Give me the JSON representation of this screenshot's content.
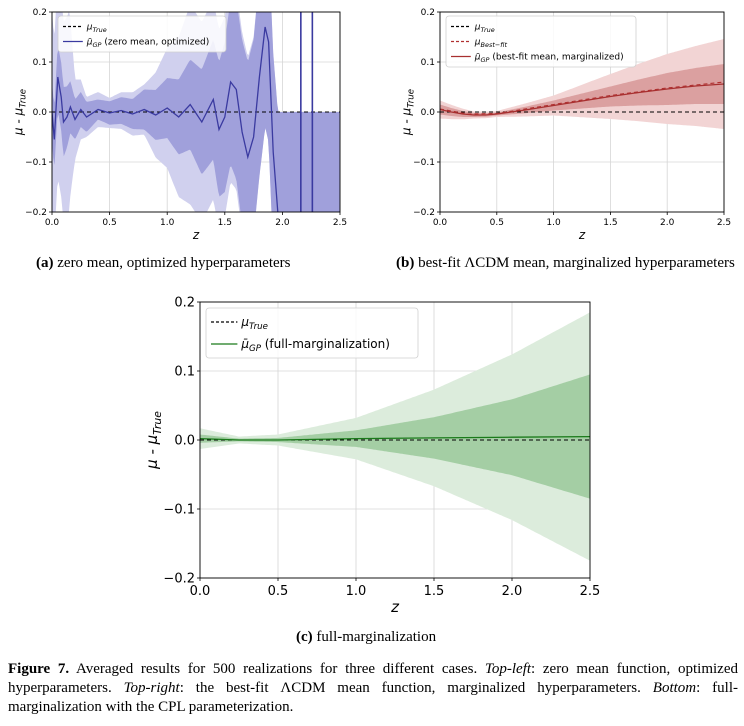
{
  "chart_data": [
    {
      "panel": "a",
      "type": "line",
      "xlabel": "z",
      "ylabel": "μ - μ_True",
      "xlim": [
        0,
        2.5
      ],
      "ylim": [
        -0.2,
        0.2
      ],
      "xticks": [
        "0.0",
        "0.5",
        "1.0",
        "1.5",
        "2.0",
        "2.5"
      ],
      "yticks": [
        "−0.2",
        "−0.1",
        "0.0",
        "0.1",
        "0.2"
      ],
      "grid": true,
      "legend_position": "upper-left",
      "legend": [
        {
          "label_main": "μ",
          "label_sub": "True",
          "label_rest": "",
          "style": "dashed",
          "color": "#000000"
        },
        {
          "label_main": "μ̄",
          "label_sub": "GP",
          "label_rest": " (zero mean, optimized)",
          "style": "solid",
          "color": "#3a3aa0"
        }
      ],
      "colors": {
        "line": "#3a3aa0",
        "band1": "#9a9ad8",
        "band2": "#d0d0ee"
      },
      "series_mean": [
        [
          0,
          0
        ],
        [
          0.02,
          -0.055
        ],
        [
          0.05,
          0.07
        ],
        [
          0.08,
          0.03
        ],
        [
          0.1,
          -0.02
        ],
        [
          0.13,
          -0.01
        ],
        [
          0.16,
          0.01
        ],
        [
          0.2,
          -0.015
        ],
        [
          0.25,
          0.005
        ],
        [
          0.3,
          -0.01
        ],
        [
          0.4,
          0.005
        ],
        [
          0.5,
          -0.002
        ],
        [
          0.6,
          0.003
        ],
        [
          0.7,
          -0.004
        ],
        [
          0.8,
          0.005
        ],
        [
          0.9,
          -0.006
        ],
        [
          1.0,
          0.008
        ],
        [
          1.1,
          -0.01
        ],
        [
          1.2,
          0.015
        ],
        [
          1.3,
          -0.02
        ],
        [
          1.4,
          0.025
        ],
        [
          1.45,
          -0.035
        ],
        [
          1.5,
          -0.01
        ],
        [
          1.55,
          0.06
        ],
        [
          1.6,
          0.045
        ],
        [
          1.65,
          -0.04
        ],
        [
          1.7,
          -0.09
        ],
        [
          1.75,
          -0.05
        ],
        [
          1.8,
          0.07
        ],
        [
          1.85,
          0.17
        ],
        [
          1.88,
          0.14
        ],
        [
          1.92,
          -0.08
        ],
        [
          1.96,
          -0.2
        ]
      ],
      "spikes_x": [
        2.16,
        2.26
      ],
      "band1_halfwidth": [
        [
          0,
          0.06
        ],
        [
          0.1,
          0.07
        ],
        [
          0.2,
          0.04
        ],
        [
          0.4,
          0.02
        ],
        [
          0.7,
          0.03
        ],
        [
          1.0,
          0.06
        ],
        [
          1.2,
          0.09
        ],
        [
          1.4,
          0.12
        ],
        [
          1.6,
          0.18
        ],
        [
          1.8,
          0.2
        ],
        [
          2.5,
          0.2
        ]
      ],
      "band2_halfwidth": [
        [
          0,
          0.2
        ],
        [
          0.15,
          0.2
        ],
        [
          0.2,
          0.08
        ],
        [
          0.3,
          0.04
        ],
        [
          0.5,
          0.03
        ],
        [
          0.8,
          0.05
        ],
        [
          1.0,
          0.12
        ],
        [
          1.2,
          0.2
        ],
        [
          2.5,
          0.2
        ]
      ]
    },
    {
      "panel": "b",
      "type": "line",
      "xlabel": "z",
      "ylabel": "μ - μ_True",
      "xlim": [
        0,
        2.5
      ],
      "ylim": [
        -0.2,
        0.2
      ],
      "xticks": [
        "0.0",
        "0.5",
        "1.0",
        "1.5",
        "2.0",
        "2.5"
      ],
      "yticks": [
        "−0.2",
        "−0.1",
        "0.0",
        "0.1",
        "0.2"
      ],
      "grid": true,
      "legend_position": "upper-left",
      "legend": [
        {
          "label_main": "μ",
          "label_sub": "True",
          "label_rest": "",
          "style": "dashed",
          "color": "#000000"
        },
        {
          "label_main": "μ",
          "label_sub": "Best−fit",
          "label_rest": "",
          "style": "dashed",
          "color": "#b03030"
        },
        {
          "label_main": "μ̄",
          "label_sub": "GP",
          "label_rest": " (best-fit mean, marginalized)",
          "style": "solid",
          "color": "#a83030"
        }
      ],
      "colors": {
        "line": "#a83030",
        "band1": "#d89a9a",
        "band2": "#f2d4d4"
      },
      "series_mean": [
        [
          0,
          0.005
        ],
        [
          0.1,
          0.0
        ],
        [
          0.2,
          -0.004
        ],
        [
          0.3,
          -0.006
        ],
        [
          0.4,
          -0.006
        ],
        [
          0.5,
          -0.004
        ],
        [
          0.75,
          0.004
        ],
        [
          1.0,
          0.013
        ],
        [
          1.25,
          0.022
        ],
        [
          1.5,
          0.031
        ],
        [
          1.75,
          0.039
        ],
        [
          2.0,
          0.046
        ],
        [
          2.25,
          0.052
        ],
        [
          2.5,
          0.056
        ]
      ],
      "series_bestfit": [
        [
          0,
          0.006
        ],
        [
          0.25,
          -0.004
        ],
        [
          0.5,
          -0.003
        ],
        [
          1.0,
          0.015
        ],
        [
          1.5,
          0.033
        ],
        [
          2.0,
          0.048
        ],
        [
          2.5,
          0.06
        ]
      ],
      "band1_halfwidth": [
        [
          0,
          0.01
        ],
        [
          0.3,
          0.004
        ],
        [
          0.5,
          0.003
        ],
        [
          1.0,
          0.01
        ],
        [
          1.5,
          0.02
        ],
        [
          2.0,
          0.032
        ],
        [
          2.5,
          0.04
        ]
      ],
      "band2_halfwidth": [
        [
          0,
          0.018
        ],
        [
          0.3,
          0.007
        ],
        [
          0.5,
          0.006
        ],
        [
          1.0,
          0.02
        ],
        [
          1.5,
          0.045
        ],
        [
          2.0,
          0.07
        ],
        [
          2.5,
          0.09
        ]
      ]
    },
    {
      "panel": "c",
      "type": "line",
      "xlabel": "z",
      "ylabel": "μ - μ_True",
      "xlim": [
        0,
        2.5
      ],
      "ylim": [
        -0.2,
        0.2
      ],
      "xticks": [
        "0.0",
        "0.5",
        "1.0",
        "1.5",
        "2.0",
        "2.5"
      ],
      "yticks": [
        "−0.2",
        "−0.1",
        "0.0",
        "0.1",
        "0.2"
      ],
      "grid": true,
      "legend_position": "upper-left",
      "legend": [
        {
          "label_main": "μ",
          "label_sub": "True",
          "label_rest": "",
          "style": "dashed",
          "color": "#000000"
        },
        {
          "label_main": "μ̄",
          "label_sub": "GP",
          "label_rest": " (full-marginalization)",
          "style": "solid",
          "color": "#1a7a1a"
        }
      ],
      "colors": {
        "line": "#1a7a1a",
        "band1": "#9dcb9d",
        "band2": "#dcecdc"
      },
      "series_mean": [
        [
          0,
          0.002
        ],
        [
          0.25,
          0.0
        ],
        [
          0.5,
          0.0
        ],
        [
          1.0,
          0.002
        ],
        [
          1.5,
          0.003
        ],
        [
          2.0,
          0.004
        ],
        [
          2.5,
          0.005
        ]
      ],
      "band1_halfwidth": [
        [
          0,
          0.006
        ],
        [
          0.25,
          0.002
        ],
        [
          0.5,
          0.003
        ],
        [
          1.0,
          0.012
        ],
        [
          1.5,
          0.03
        ],
        [
          2.0,
          0.055
        ],
        [
          2.5,
          0.09
        ]
      ],
      "band2_halfwidth": [
        [
          0,
          0.015
        ],
        [
          0.25,
          0.005
        ],
        [
          0.5,
          0.008
        ],
        [
          1.0,
          0.03
        ],
        [
          1.5,
          0.07
        ],
        [
          2.0,
          0.12
        ],
        [
          2.5,
          0.18
        ]
      ]
    }
  ],
  "captions": {
    "a_label": "(a)",
    "a_text": " zero mean, optimized hyperparameters",
    "b_label": "(b)",
    "b_text": " best-fit ΛCDM mean, marginalized hyperparameters",
    "c_label": "(c)",
    "c_text": " full-marginalization"
  },
  "figure_caption": {
    "label": "Figure 7.",
    "s1": " Averaged results for 500 realizations for three different cases. ",
    "tl": "Top-left",
    "s2": ": zero mean function, optimized hyperparameters. ",
    "tr": "Top-right",
    "s3": ": the best-fit ΛCDM mean function, marginalized hyperparameters. ",
    "bottom": "Bottom",
    "s4": ": full-marginalization with the CPL parameterization."
  }
}
